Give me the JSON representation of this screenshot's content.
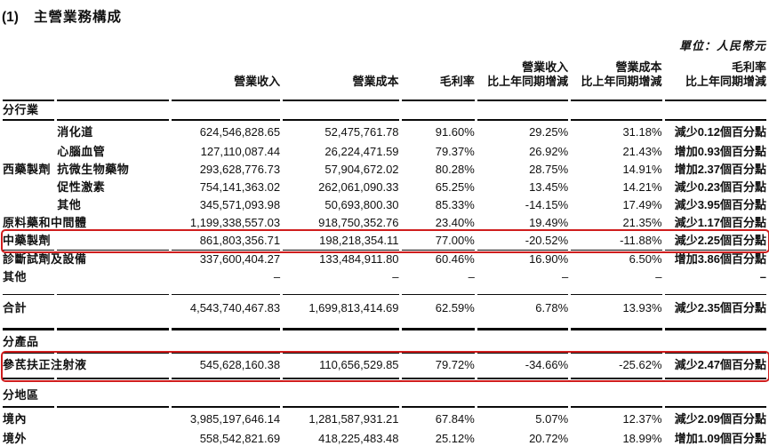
{
  "title": {
    "number": "(1)",
    "text": "主營業務構成"
  },
  "unit_note": "單位：人民幣元",
  "highlight_color": "#cf1d1d",
  "table": {
    "headers": {
      "revenue": "營業收入",
      "cost": "營業成本",
      "margin": "毛利率",
      "yoy_suffix": "比上年同期增減"
    },
    "rows": [
      {
        "label": "分行業"
      },
      {
        "sub": "消化道",
        "v": [
          "624,546,828.65",
          "52,475,761.78",
          "91.60%",
          "29.25%",
          "31.18%",
          "減少0.12個百分點"
        ]
      },
      {
        "sub": "心腦血管",
        "v": [
          "127,110,087.44",
          "26,224,471.59",
          "79.37%",
          "26.92%",
          "21.43%",
          "增加0.93個百分點"
        ]
      },
      {
        "group": "西藥製劑",
        "sub": "抗微生物藥物",
        "v": [
          "293,628,776.73",
          "57,904,672.02",
          "80.28%",
          "28.75%",
          "14.91%",
          "增加2.37個百分點"
        ]
      },
      {
        "sub": "促性激素",
        "v": [
          "754,141,363.02",
          "262,061,090.33",
          "65.25%",
          "13.45%",
          "14.21%",
          "減少0.23個百分點"
        ]
      },
      {
        "sub": "其他",
        "v": [
          "345,571,093.98",
          "50,693,800.30",
          "85.33%",
          "-14.15%",
          "17.49%",
          "減少3.95個百分點"
        ]
      },
      {
        "label": "原料藥和中間體",
        "v": [
          "1,199,338,557.03",
          "918,750,352.76",
          "23.40%",
          "19.49%",
          "21.35%",
          "減少1.17個百分點"
        ]
      },
      {
        "label": "中藥製劑",
        "v": [
          "861,803,356.71",
          "198,218,354.11",
          "77.00%",
          "-20.52%",
          "-11.88%",
          "減少2.25個百分點"
        ]
      },
      {
        "label": "診斷試劑及設備",
        "v": [
          "337,600,404.27",
          "133,484,911.80",
          "60.46%",
          "16.90%",
          "6.50%",
          "增加3.86個百分點"
        ]
      },
      {
        "label": "其他",
        "v": [
          "–",
          "–",
          "–",
          "–",
          "–",
          "–"
        ]
      },
      {
        "label": "合計",
        "v": [
          "4,543,740,467.83",
          "1,699,813,414.69",
          "62.59%",
          "6.78%",
          "13.93%",
          "減少2.35個百分點"
        ]
      },
      {
        "label": "分產品"
      },
      {
        "label": "參芪扶正注射液",
        "v": [
          "545,628,160.38",
          "110,656,529.85",
          "79.72%",
          "-34.66%",
          "-25.62%",
          "減少2.47個百分點"
        ]
      },
      {
        "label": "分地區"
      },
      {
        "label": "境內",
        "v": [
          "3,985,197,646.14",
          "1,281,587,931.21",
          "67.84%",
          "5.07%",
          "12.37%",
          "減少2.09個百分點"
        ]
      },
      {
        "label": "境外",
        "v": [
          "558,542,821.69",
          "418,225,483.48",
          "25.12%",
          "20.72%",
          "18.99%",
          "增加1.09個百分點"
        ]
      }
    ]
  }
}
